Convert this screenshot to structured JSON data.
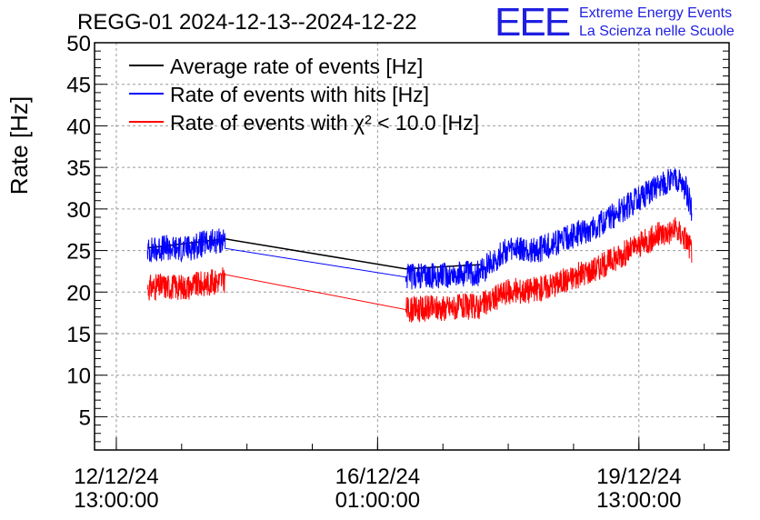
{
  "logo": {
    "text": "EEE",
    "line1": "Extreme Energy Events",
    "line2": "La Scienza nelle Scuole",
    "color": "#1f1fe0"
  },
  "chart_data": {
    "type": "line",
    "title": "REGG-01 2024-12-13--2024-12-22",
    "ylabel": "Rate [Hz]",
    "xlabel": "",
    "ylim": [
      1,
      50
    ],
    "y_ticks": [
      5,
      10,
      15,
      20,
      25,
      30,
      35,
      40,
      45,
      50
    ],
    "x_tick_labels": [
      {
        "date": "12/12/24",
        "time": "13:00:00",
        "t": 0
      },
      {
        "date": "16/12/24",
        "time": "01:00:00",
        "t": 84
      },
      {
        "date": "19/12/24",
        "time": "13:00:00",
        "t": 168
      }
    ],
    "xlim_hours": [
      -7,
      197
    ],
    "grid": true,
    "legend_position": "top-left",
    "series": [
      {
        "name": "Average rate of events [Hz]",
        "color": "#000000",
        "points": [
          [
            10,
            25.3
          ],
          [
            35,
            26.4
          ],
          [
            93,
            22.8
          ],
          [
            117,
            23.3
          ]
        ]
      },
      {
        "name": "Rate of events with hits [Hz]",
        "color": "#0000ff",
        "points": [
          [
            10,
            25.0
          ],
          [
            15,
            25.3
          ],
          [
            22,
            25.2
          ],
          [
            28,
            25.8
          ],
          [
            35,
            26.3
          ],
          [
            93,
            21.8
          ],
          [
            117,
            22.3
          ],
          [
            125,
            25.0
          ],
          [
            135,
            25.0
          ],
          [
            145,
            26.5
          ],
          [
            155,
            28.0
          ],
          [
            165,
            30.5
          ],
          [
            175,
            33.0
          ],
          [
            180,
            33.5
          ],
          [
            183,
            32.5
          ],
          [
            185,
            30.0
          ]
        ]
      },
      {
        "name": "Rate of events with χ² < 10.0 [Hz]",
        "color": "#ff0000",
        "points": [
          [
            10,
            20.5
          ],
          [
            15,
            20.7
          ],
          [
            22,
            20.6
          ],
          [
            28,
            21.0
          ],
          [
            35,
            21.5
          ],
          [
            93,
            17.9
          ],
          [
            117,
            18.3
          ],
          [
            125,
            20.0
          ],
          [
            135,
            20.3
          ],
          [
            145,
            21.5
          ],
          [
            155,
            23.0
          ],
          [
            165,
            25.0
          ],
          [
            175,
            27.0
          ],
          [
            180,
            27.5
          ],
          [
            183,
            26.5
          ],
          [
            185,
            25.0
          ]
        ]
      }
    ]
  }
}
